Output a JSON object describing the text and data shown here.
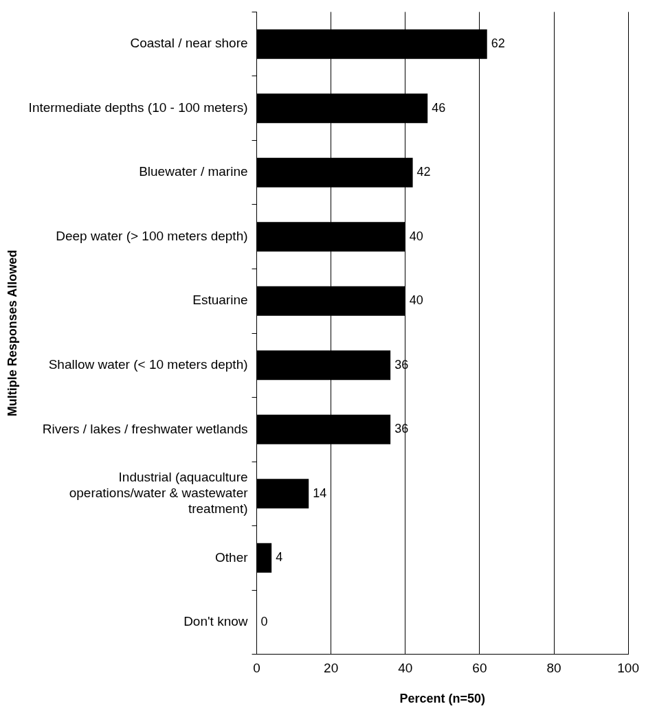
{
  "chart_data": {
    "type": "bar",
    "orientation": "horizontal",
    "categories": [
      "Coastal / near shore",
      "Intermediate depths (10 - 100 meters)",
      "Bluewater / marine",
      "Deep water (> 100 meters depth)",
      "Estuarine",
      "Shallow water (< 10 meters depth)",
      "Rivers / lakes / freshwater wetlands",
      "Industrial (aquaculture operations/water & wastewater treatment)",
      "Other",
      "Don't know"
    ],
    "values": [
      62,
      46,
      42,
      40,
      40,
      36,
      36,
      14,
      4,
      0
    ],
    "color": "#000000",
    "xlim": [
      0,
      100
    ],
    "xticks": [
      0,
      20,
      40,
      60,
      80,
      100
    ],
    "xlabel": "Percent (n=50)",
    "ylabel": "Multiple Responses Allowed",
    "grid": "x",
    "legend": false,
    "data_labels": true
  }
}
